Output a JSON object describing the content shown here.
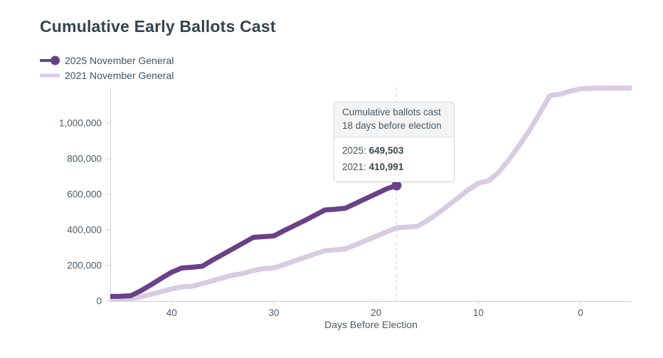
{
  "title": "Cumulative Early Ballots Cast",
  "legend": {
    "items": [
      {
        "label": "2025 November General",
        "color": "#6a4088",
        "marker": "line-with-dot"
      },
      {
        "label": "2021 November General",
        "color": "#d8cbe2",
        "marker": "line"
      }
    ]
  },
  "tooltip": {
    "header_line_1": "Cumulative ballots cast",
    "header_line_2": "18 days before election",
    "rows": [
      {
        "label": "2025:",
        "value": "649,503"
      },
      {
        "label": "2021:",
        "value": "410,991"
      }
    ]
  },
  "chart_data": {
    "type": "line",
    "title": "Cumulative Early Ballots Cast",
    "xlabel": "Days Before Election",
    "ylabel": "",
    "x_axis_reversed": true,
    "x_range": [
      46,
      -5
    ],
    "ylim": [
      0,
      1200000
    ],
    "grid": false,
    "legend_position": "top-left",
    "x_ticks": [
      "40",
      "30",
      "20",
      "10",
      "0"
    ],
    "x_tick_values": [
      40,
      30,
      20,
      10,
      0
    ],
    "y_ticks": [
      "0",
      "200,000",
      "400,000",
      "600,000",
      "800,000",
      "1,000,000"
    ],
    "y_tick_values": [
      0,
      200000,
      400000,
      600000,
      800000,
      1000000
    ],
    "highlight": {
      "day": 18,
      "value_2025": 649503,
      "value_2021": 410991
    },
    "series": [
      {
        "name": "2025 November General",
        "color": "#6a4088",
        "end_marker": true,
        "x": [
          46,
          45,
          44,
          43,
          42,
          41,
          40,
          39,
          38,
          37,
          36,
          35,
          34,
          33,
          32,
          31,
          30,
          29,
          28,
          27,
          26,
          25,
          24,
          23,
          22,
          21,
          20,
          19,
          18
        ],
        "values": [
          26000,
          27000,
          30000,
          58000,
          92000,
          128000,
          162000,
          186000,
          190000,
          196000,
          230000,
          262000,
          294000,
          326000,
          358000,
          362000,
          366000,
          396000,
          424000,
          452000,
          482000,
          512000,
          516000,
          522000,
          549000,
          576000,
          603000,
          630000,
          649503
        ]
      },
      {
        "name": "2021 November General",
        "color": "#d8cbe2",
        "end_marker": false,
        "x": [
          46,
          45,
          44,
          43,
          42,
          41,
          40,
          39,
          38,
          37,
          36,
          35,
          34,
          33,
          32,
          31,
          30,
          29,
          28,
          27,
          26,
          25,
          24,
          23,
          22,
          21,
          20,
          19,
          18,
          17,
          16,
          15,
          14,
          13,
          12,
          11,
          10,
          9,
          8,
          7,
          6,
          5,
          4,
          3,
          2,
          1,
          0,
          -1,
          -2,
          -3,
          -4,
          -5
        ],
        "values": [
          8000,
          9000,
          12000,
          24000,
          38000,
          53000,
          68000,
          80000,
          83000,
          98000,
          114000,
          130000,
          146000,
          155000,
          172000,
          182000,
          186000,
          205000,
          225000,
          245000,
          265000,
          283000,
          288000,
          294000,
          316000,
          340000,
          364000,
          388000,
          410991,
          416000,
          419000,
          452000,
          492000,
          535000,
          580000,
          625000,
          662000,
          676000,
          725000,
          795000,
          875000,
          960000,
          1055000,
          1155000,
          1163000,
          1180000,
          1193000,
          1196000,
          1197000,
          1197000,
          1197000,
          1197000
        ]
      }
    ]
  },
  "colors": {
    "series_2025": "#6a4088",
    "series_2021": "#d8cbe2",
    "title_text": "#35444f",
    "label_text": "#4b5b67",
    "axis_line": "#ccd2d6",
    "dashed_line": "#d8dbdd",
    "tooltip_border": "#d6d6d6",
    "tooltip_header_bg": "#f4f4f4"
  }
}
